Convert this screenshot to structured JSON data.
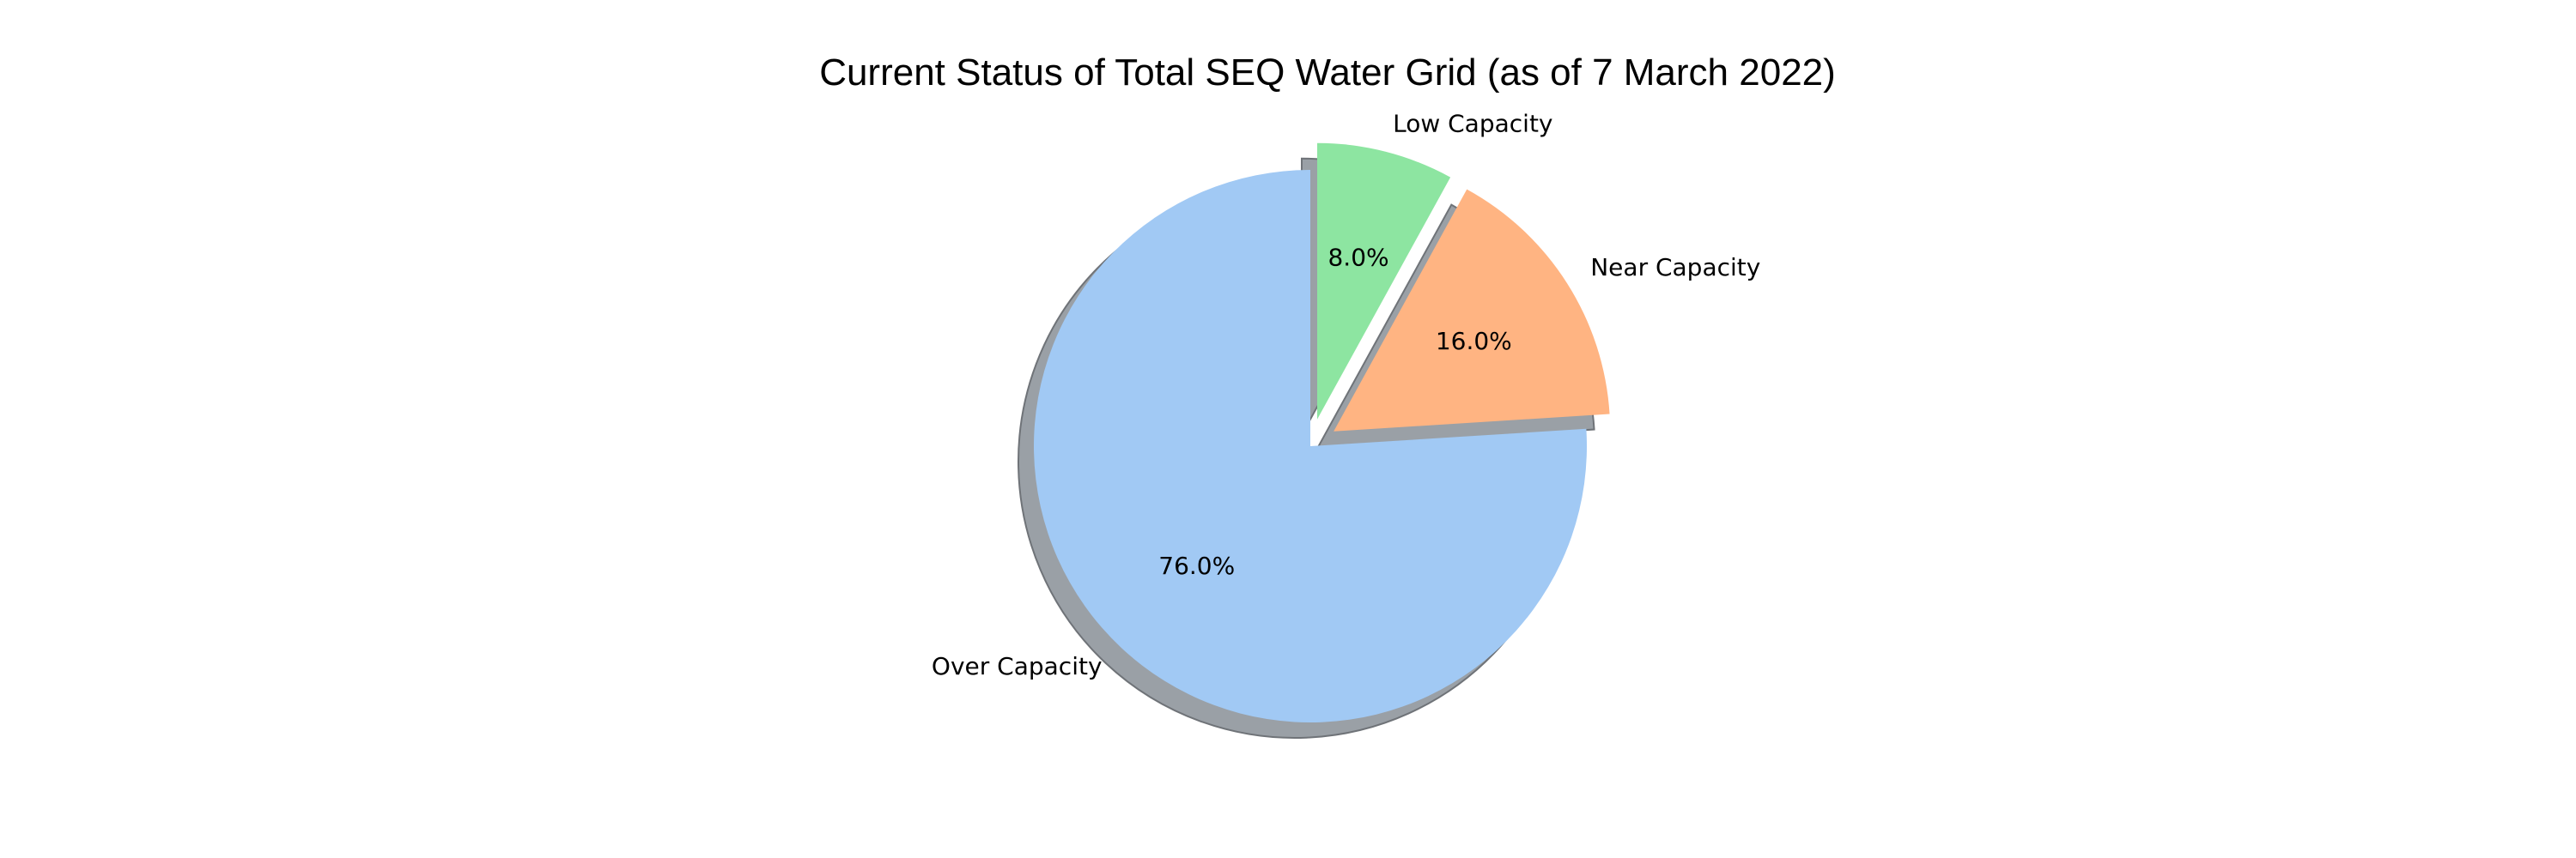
{
  "chart_data": {
    "type": "pie",
    "title": "Current Status of Total SEQ Water Grid (as of 7 March 2022)",
    "categories": [
      "Low Capacity",
      "Near Capacity",
      "Over Capacity"
    ],
    "values": [
      8.0,
      16.0,
      76.0
    ],
    "value_labels": [
      "8.0%",
      "16.0%",
      "76.0%"
    ],
    "colors": [
      "#8de5a1",
      "#ffb482",
      "#a1c9f4"
    ],
    "explode": [
      0.1,
      0.1,
      0
    ],
    "start_angle_deg": 90,
    "direction": "clockwise",
    "shadow": true,
    "shadow_color": "#9aa0a6"
  }
}
